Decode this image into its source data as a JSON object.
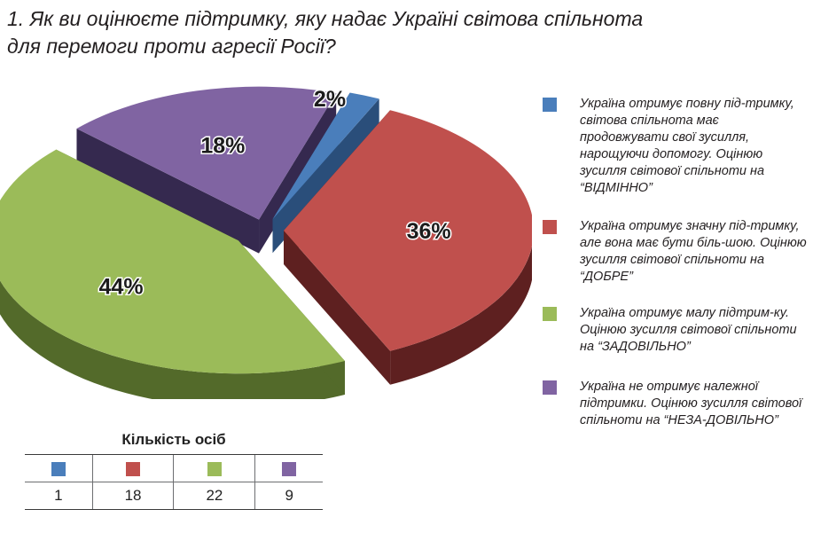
{
  "title": {
    "line1": "1. Як ви оцінюєте підтримку, яку надає Україні світова спільнота",
    "line2": "для перемоги проти агресії Росії?"
  },
  "chart_data": {
    "type": "pie",
    "categories": [
      "Україна отримує повну під-тримку, світова спільнота має продовжувати свої зусилля, нарощуючи допомогу. Оцінюю зусилля світової спільноти на “ВІДМІННО”",
      "Україна отримує значну під-тримку, але вона має бути біль-шою. Оцінюю зусилля світової спільноти на “ДОБРЕ”",
      "Україна отримує малу підтрим-ку. Оцінюю зусилля світової спільноти на “ЗАДОВІЛЬНО”",
      "Україна не отримує належної підтримки. Оцінюю зусилля світової спільноти на “НЕЗА-ДОВІЛЬНО”"
    ],
    "values": [
      2,
      36,
      44,
      18
    ],
    "labels": [
      "2%",
      "36%",
      "44%",
      "18%"
    ],
    "colors": [
      "#4a7ebb",
      "#c0504d",
      "#9bbb59",
      "#8064a2"
    ],
    "side_colors": [
      "#2a4e7a",
      "#5e2020",
      "#536a2a",
      "#35294f"
    ],
    "legend_position": "right",
    "table": {
      "title": "Кількість осіб",
      "counts": [
        "1",
        "18",
        "22",
        "9"
      ]
    }
  }
}
